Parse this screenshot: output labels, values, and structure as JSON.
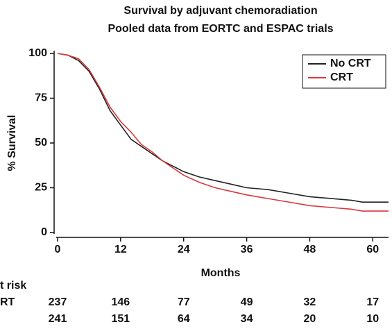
{
  "chart_data": {
    "type": "line",
    "title": "Survival by adjuvant chemoradiation",
    "subtitle": "Pooled data from EORTC and ESPAC trials",
    "xlabel": "Months",
    "ylabel": "% Survival",
    "x": [
      0,
      2,
      4,
      6,
      8,
      10,
      12,
      14,
      16,
      18,
      20,
      22,
      24,
      27,
      30,
      33,
      36,
      40,
      44,
      48,
      52,
      56,
      58,
      63
    ],
    "series": [
      {
        "name": "No CRT",
        "color": "#222222",
        "values": [
          100,
          99,
          96,
          90,
          80,
          68,
          60,
          52,
          48,
          44,
          40,
          37,
          34,
          31,
          29,
          27,
          25,
          24,
          22,
          20,
          19,
          18,
          17,
          17
        ]
      },
      {
        "name": "CRT",
        "color": "#d9383a",
        "values": [
          100,
          99,
          97,
          91,
          81,
          70,
          62,
          56,
          49,
          45,
          40,
          36,
          32,
          28,
          25,
          23,
          21,
          19,
          17,
          15,
          14,
          13,
          12,
          12
        ]
      }
    ],
    "xlim": [
      0,
      63
    ],
    "xticks": [
      0,
      12,
      24,
      36,
      48,
      60
    ],
    "ylim": [
      0,
      100
    ],
    "yticks": [
      0,
      25,
      50,
      75,
      100
    ],
    "legend": "upper right",
    "risk_table": {
      "title": "t risk",
      "rows": [
        {
          "label": "RT",
          "values": [
            "237",
            "146",
            "77",
            "49",
            "32",
            "17"
          ]
        },
        {
          "values": [
            "241",
            "151",
            "64",
            "34",
            "20",
            "10"
          ]
        }
      ]
    }
  }
}
